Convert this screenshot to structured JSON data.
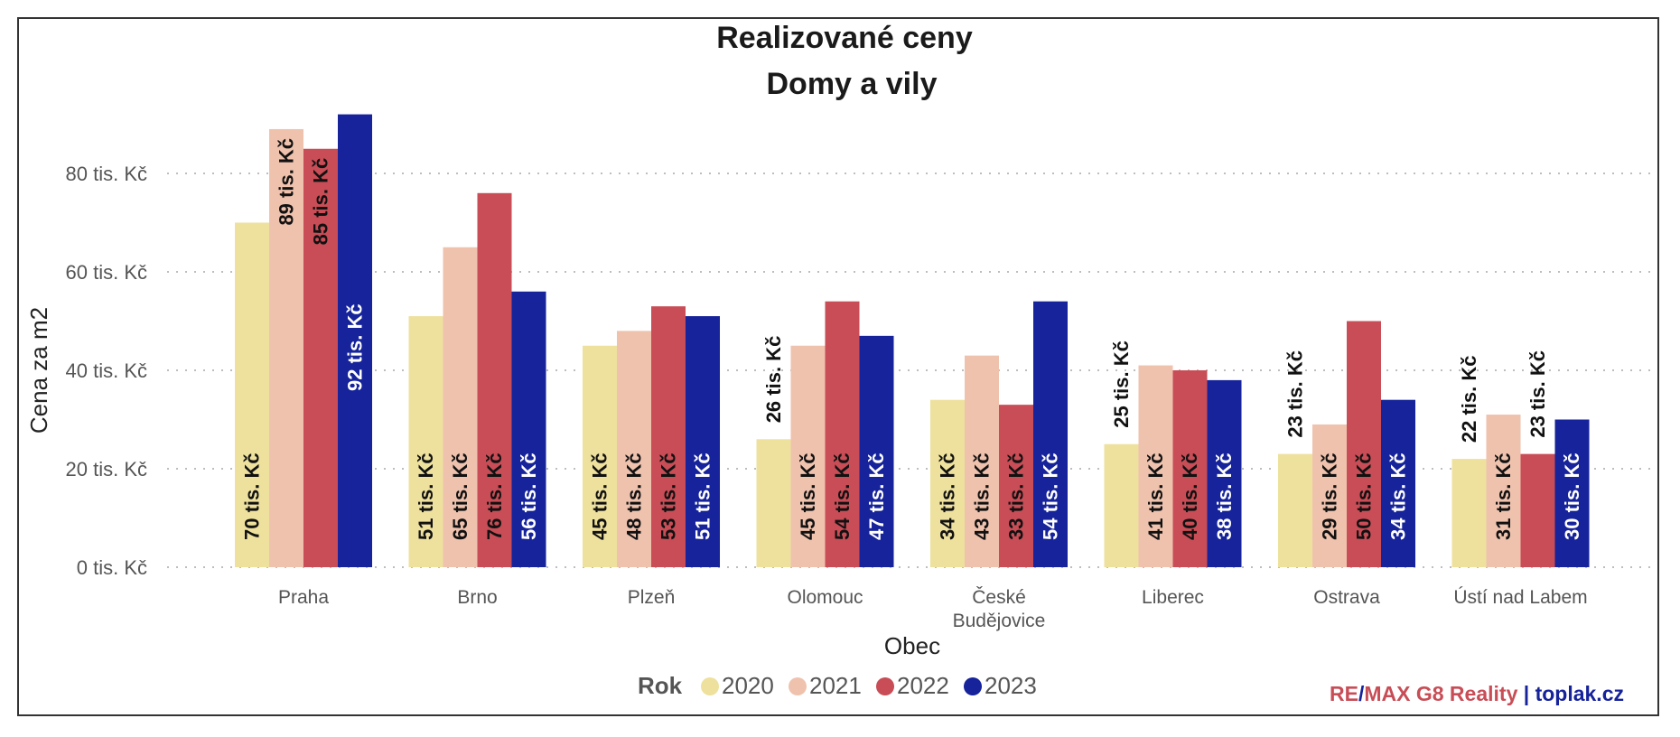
{
  "chart_data": {
    "type": "bar",
    "title": "Realizované ceny",
    "subtitle": "Domy a vily",
    "xlabel": "Obec",
    "ylabel": "Cena za m2",
    "categories": [
      "Praha",
      "Brno",
      "Plzeň",
      "Olomouc",
      "České Budějovice",
      "Liberec",
      "Ostrava",
      "Ústí nad Labem"
    ],
    "series": [
      {
        "name": "2020",
        "color": "#EEE19D",
        "values": [
          70,
          51,
          45,
          26,
          34,
          25,
          23,
          22
        ],
        "labels": [
          "70 tis. Kč",
          "51 tis. Kč",
          "45 tis. Kč",
          "26 tis. Kč",
          "34 tis. Kč",
          "25 tis. Kč",
          "23 tis. Kč",
          "22 tis. Kč"
        ]
      },
      {
        "name": "2021",
        "color": "#EFC2AE",
        "values": [
          89,
          65,
          48,
          45,
          43,
          41,
          29,
          31
        ],
        "labels": [
          "89 tis. Kč",
          "65 tis. Kč",
          "48 tis. Kč",
          "45 tis. Kč",
          "43 tis. Kč",
          "41 tis. Kč",
          "29 tis. Kč",
          "31 tis. Kč"
        ]
      },
      {
        "name": "2022",
        "color": "#C84D56",
        "values": [
          85,
          76,
          53,
          54,
          33,
          40,
          50,
          23
        ],
        "labels": [
          "85 tis. Kč",
          "76 tis. Kč",
          "53 tis. Kč",
          "54 tis. Kč",
          "33 tis. Kč",
          "40 tis. Kč",
          "50 tis. Kč",
          "23 tis. Kč"
        ]
      },
      {
        "name": "2023",
        "color": "#16239A",
        "values": [
          92,
          56,
          51,
          47,
          54,
          38,
          34,
          30
        ],
        "labels": [
          "92 tis. Kč",
          "56 tis. Kč",
          "51 tis. Kč",
          "47 tis. Kč",
          "54 tis. Kč",
          "38 tis. Kč",
          "34 tis. Kč",
          "30 tis. Kč"
        ]
      }
    ],
    "ylim": [
      0,
      92
    ],
    "yticks": [
      0,
      20,
      40,
      60,
      80
    ],
    "ytick_labels": [
      "0 tis. Kč",
      "20 tis. Kč",
      "40 tis. Kč",
      "60 tis. Kč",
      "80 tis. Kč"
    ],
    "grid": true,
    "legend": {
      "title": "Rok",
      "position": "bottom-center"
    }
  },
  "branding": {
    "part1": "RE",
    "part2": "/",
    "part3": "MAX G8 Reality",
    "part4": " | ",
    "part5": "toplak.cz",
    "red": "#C84D56",
    "blue": "#16239A"
  }
}
